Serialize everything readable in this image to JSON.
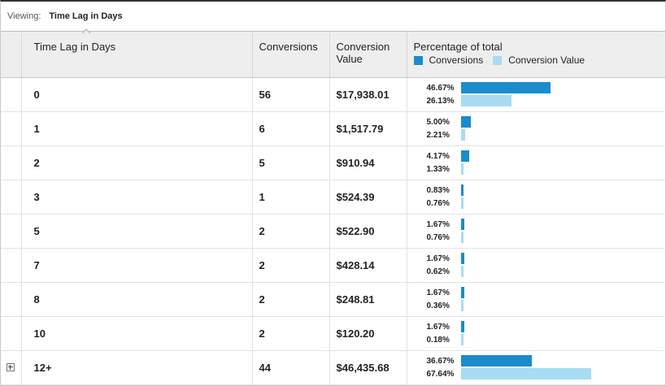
{
  "viewing": {
    "label": "Viewing:",
    "value": "Time Lag in Days"
  },
  "headers": {
    "lag": "Time Lag in Days",
    "conversions": "Conversions",
    "value": "Conversion Value",
    "pct": "Percentage of total",
    "legend_conversions": "Conversions",
    "legend_value": "Conversion Value"
  },
  "colors": {
    "conversions": "#1a8ccc",
    "value": "#a8dcf2"
  },
  "rows": [
    {
      "lag": "0",
      "conversions": "56",
      "value": "$17,938.01",
      "pct_conv": "46.67%",
      "pct_val": "26.13%",
      "conv_frac": 0.4667,
      "val_frac": 0.2613,
      "expandable": false
    },
    {
      "lag": "1",
      "conversions": "6",
      "value": "$1,517.79",
      "pct_conv": "5.00%",
      "pct_val": "2.21%",
      "conv_frac": 0.05,
      "val_frac": 0.0221,
      "expandable": false
    },
    {
      "lag": "2",
      "conversions": "5",
      "value": "$910.94",
      "pct_conv": "4.17%",
      "pct_val": "1.33%",
      "conv_frac": 0.0417,
      "val_frac": 0.0133,
      "expandable": false
    },
    {
      "lag": "3",
      "conversions": "1",
      "value": "$524.39",
      "pct_conv": "0.83%",
      "pct_val": "0.76%",
      "conv_frac": 0.0083,
      "val_frac": 0.0076,
      "expandable": false
    },
    {
      "lag": "5",
      "conversions": "2",
      "value": "$522.90",
      "pct_conv": "1.67%",
      "pct_val": "0.76%",
      "conv_frac": 0.0167,
      "val_frac": 0.0076,
      "expandable": false
    },
    {
      "lag": "7",
      "conversions": "2",
      "value": "$428.14",
      "pct_conv": "1.67%",
      "pct_val": "0.62%",
      "conv_frac": 0.0167,
      "val_frac": 0.0062,
      "expandable": false
    },
    {
      "lag": "8",
      "conversions": "2",
      "value": "$248.81",
      "pct_conv": "1.67%",
      "pct_val": "0.36%",
      "conv_frac": 0.0167,
      "val_frac": 0.0036,
      "expandable": false
    },
    {
      "lag": "10",
      "conversions": "2",
      "value": "$120.20",
      "pct_conv": "1.67%",
      "pct_val": "0.18%",
      "conv_frac": 0.0167,
      "val_frac": 0.0018,
      "expandable": false
    },
    {
      "lag": "12+",
      "conversions": "44",
      "value": "$46,435.68",
      "pct_conv": "36.67%",
      "pct_val": "67.64%",
      "conv_frac": 0.3667,
      "val_frac": 0.6764,
      "expandable": true
    }
  ]
}
